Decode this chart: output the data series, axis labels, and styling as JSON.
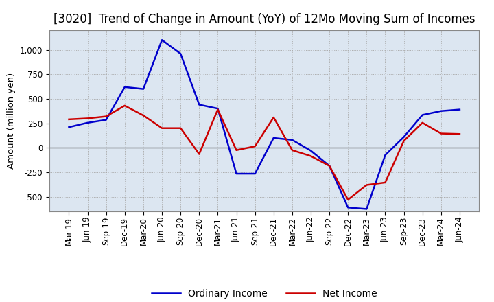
{
  "title": "[3020]  Trend of Change in Amount (YoY) of 12Mo Moving Sum of Incomes",
  "ylabel": "Amount (million yen)",
  "background_color": "#ffffff",
  "plot_bg_color": "#dce6f1",
  "grid_color": "#999999",
  "ordinary_income_color": "#0000cc",
  "net_income_color": "#cc0000",
  "line_width": 1.8,
  "labels": [
    "Mar-19",
    "Jun-19",
    "Sep-19",
    "Dec-19",
    "Mar-20",
    "Jun-20",
    "Sep-20",
    "Dec-20",
    "Mar-21",
    "Jun-21",
    "Sep-21",
    "Dec-21",
    "Mar-22",
    "Jun-22",
    "Sep-22",
    "Dec-22",
    "Mar-23",
    "Jun-23",
    "Sep-23",
    "Dec-23",
    "Mar-24",
    "Jun-24"
  ],
  "ordinary_income": [
    210,
    255,
    285,
    620,
    600,
    1100,
    960,
    440,
    400,
    -265,
    -265,
    100,
    80,
    -30,
    -185,
    -610,
    -625,
    -75,
    110,
    335,
    375,
    390
  ],
  "net_income": [
    290,
    300,
    320,
    430,
    330,
    200,
    200,
    -65,
    390,
    -25,
    15,
    310,
    -25,
    -85,
    -185,
    -530,
    -380,
    -355,
    70,
    255,
    145,
    140
  ],
  "ylim": [
    -650,
    1200
  ],
  "yticks": [
    -500,
    -250,
    0,
    250,
    500,
    750,
    1000
  ],
  "title_fontsize": 12,
  "tick_fontsize": 8.5,
  "ylabel_fontsize": 9.5,
  "legend_fontsize": 10
}
